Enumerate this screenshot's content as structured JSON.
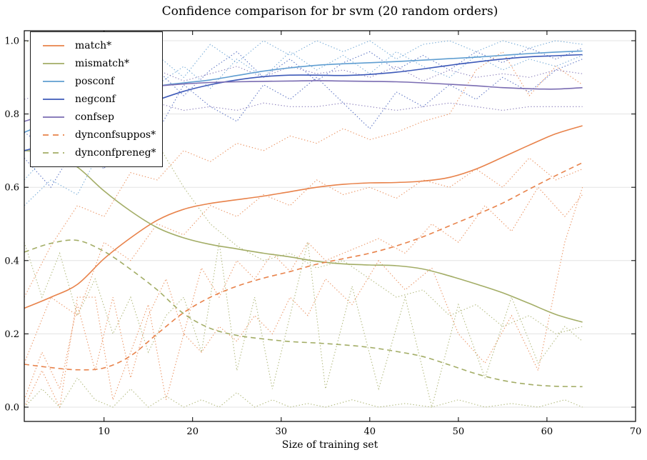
{
  "title": "Confidence comparison for br svm (20 random orders)",
  "chart_data": {
    "type": "line",
    "title": "Confidence comparison for br svm (20 random orders)",
    "xlabel": "Size of training set",
    "ylabel": "",
    "xlim": [
      1,
      70
    ],
    "ylim": [
      -0.04,
      1.03
    ],
    "xticks": [
      10,
      20,
      30,
      40,
      50,
      60,
      70
    ],
    "yticks": [
      0.0,
      0.2,
      0.4,
      0.6,
      0.8,
      1.0
    ],
    "grid": "horizontal",
    "legend_position": "upper-left",
    "colors": {
      "orange": "#e8824a",
      "olive": "#a3ad66",
      "lightblue": "#5f9ed1",
      "darkblue": "#3d59b8",
      "purple": "#7a6cb2",
      "grid": "#e3e3e3",
      "axis": "#000000"
    },
    "x": [
      1,
      4,
      7,
      10,
      13,
      16,
      19,
      22,
      25,
      28,
      31,
      34,
      37,
      40,
      43,
      46,
      49,
      52,
      55,
      58,
      61,
      64
    ],
    "series": [
      {
        "name": "match*",
        "color": "orange",
        "dash": "solid",
        "values": [
          0.27,
          0.3,
          0.335,
          0.405,
          0.462,
          0.51,
          0.54,
          0.556,
          0.566,
          0.576,
          0.588,
          0.6,
          0.608,
          0.612,
          0.613,
          0.617,
          0.627,
          0.65,
          0.682,
          0.715,
          0.746,
          0.768
        ]
      },
      {
        "name": "mismatch*",
        "color": "olive",
        "dash": "solid",
        "values": [
          0.7,
          0.693,
          0.655,
          0.59,
          0.535,
          0.49,
          0.462,
          0.444,
          0.432,
          0.42,
          0.41,
          0.398,
          0.391,
          0.388,
          0.386,
          0.377,
          0.358,
          0.336,
          0.312,
          0.283,
          0.253,
          0.232
        ]
      },
      {
        "name": "posconf",
        "color": "lightblue",
        "dash": "solid",
        "values": [
          0.75,
          0.78,
          0.812,
          0.842,
          0.862,
          0.876,
          0.885,
          0.893,
          0.905,
          0.917,
          0.926,
          0.933,
          0.937,
          0.94,
          0.943,
          0.947,
          0.951,
          0.955,
          0.96,
          0.965,
          0.969,
          0.972
        ]
      },
      {
        "name": "negconf",
        "color": "darkblue",
        "dash": "solid",
        "values": [
          0.7,
          0.72,
          0.748,
          0.778,
          0.812,
          0.838,
          0.862,
          0.88,
          0.893,
          0.902,
          0.906,
          0.906,
          0.905,
          0.908,
          0.914,
          0.923,
          0.933,
          0.942,
          0.95,
          0.956,
          0.959,
          0.962
        ]
      },
      {
        "name": "confsep",
        "color": "purple",
        "dash": "solid",
        "values": [
          0.78,
          0.802,
          0.824,
          0.847,
          0.864,
          0.876,
          0.882,
          0.886,
          0.888,
          0.889,
          0.89,
          0.891,
          0.89,
          0.889,
          0.888,
          0.885,
          0.881,
          0.877,
          0.872,
          0.869,
          0.868,
          0.872
        ]
      },
      {
        "name": "dynconfsuppos*",
        "color": "orange",
        "dash": "dashed",
        "values": [
          0.117,
          0.108,
          0.102,
          0.107,
          0.14,
          0.2,
          0.258,
          0.3,
          0.33,
          0.352,
          0.37,
          0.39,
          0.405,
          0.42,
          0.44,
          0.465,
          0.495,
          0.525,
          0.557,
          0.595,
          0.632,
          0.667
        ]
      },
      {
        "name": "dynconfpreneg*",
        "color": "olive",
        "dash": "dashed",
        "values": [
          0.423,
          0.447,
          0.455,
          0.425,
          0.376,
          0.32,
          0.255,
          0.215,
          0.196,
          0.186,
          0.179,
          0.175,
          0.17,
          0.163,
          0.152,
          0.138,
          0.115,
          0.091,
          0.073,
          0.062,
          0.057,
          0.056
        ]
      }
    ],
    "runs_note": "faint dotted traces = individual random-order runs (approximate)",
    "runs_x_spiky": [
      1,
      3,
      5,
      7,
      9,
      11,
      13,
      15,
      17,
      19,
      21,
      23,
      25,
      27,
      29,
      31,
      33,
      35,
      38,
      41,
      44,
      47,
      50,
      53,
      56,
      59,
      62,
      64
    ],
    "runs": [
      {
        "color": "lightblue",
        "x": "main",
        "values": [
          0.62,
          0.7,
          0.66,
          0.78,
          0.86,
          0.96,
          0.9,
          0.99,
          0.94,
          1.0,
          0.96,
          1.0,
          0.97,
          1.0,
          0.95,
          0.99,
          1.0,
          0.97,
          1.0,
          0.98,
          1.0,
          0.99
        ]
      },
      {
        "color": "lightblue",
        "x": "main",
        "values": [
          0.55,
          0.62,
          0.58,
          0.72,
          0.68,
          0.88,
          0.93,
          0.87,
          0.95,
          0.9,
          0.97,
          0.92,
          0.96,
          0.91,
          0.97,
          0.93,
          0.9,
          0.96,
          0.92,
          0.95,
          0.93,
          0.96
        ]
      },
      {
        "color": "darkblue",
        "x": "main",
        "values": [
          0.68,
          0.6,
          0.72,
          0.65,
          0.8,
          0.75,
          0.88,
          0.82,
          0.78,
          0.88,
          0.84,
          0.9,
          0.83,
          0.76,
          0.86,
          0.82,
          0.88,
          0.84,
          0.9,
          0.86,
          0.92,
          0.95
        ]
      },
      {
        "color": "darkblue",
        "x": "main",
        "values": [
          0.75,
          0.7,
          0.78,
          0.72,
          0.85,
          0.92,
          0.85,
          0.92,
          0.97,
          0.9,
          0.95,
          0.89,
          0.94,
          0.97,
          0.92,
          0.96,
          0.92,
          0.97,
          0.94,
          0.98,
          0.95,
          0.98
        ]
      },
      {
        "color": "purple",
        "x": "main",
        "values": [
          0.78,
          0.8,
          0.79,
          0.81,
          0.8,
          0.83,
          0.81,
          0.82,
          0.81,
          0.83,
          0.82,
          0.82,
          0.83,
          0.82,
          0.81,
          0.82,
          0.83,
          0.82,
          0.81,
          0.82,
          0.82,
          0.82
        ]
      },
      {
        "color": "purple",
        "x": "main",
        "values": [
          0.84,
          0.86,
          0.85,
          0.88,
          0.87,
          0.92,
          0.89,
          0.91,
          0.93,
          0.9,
          0.93,
          0.91,
          0.92,
          0.9,
          0.93,
          0.89,
          0.92,
          0.9,
          0.91,
          0.9,
          0.92,
          0.91
        ]
      },
      {
        "color": "orange",
        "x": "main",
        "values": [
          0.3,
          0.44,
          0.55,
          0.52,
          0.64,
          0.62,
          0.7,
          0.67,
          0.72,
          0.7,
          0.74,
          0.72,
          0.76,
          0.73,
          0.75,
          0.78,
          0.8,
          0.92,
          0.97,
          0.85,
          0.93,
          0.88
        ]
      },
      {
        "color": "orange",
        "x": "main",
        "values": [
          0.12,
          0.3,
          0.25,
          0.45,
          0.4,
          0.5,
          0.47,
          0.55,
          0.52,
          0.58,
          0.55,
          0.62,
          0.58,
          0.6,
          0.57,
          0.62,
          0.6,
          0.65,
          0.6,
          0.68,
          0.62,
          0.65
        ]
      },
      {
        "color": "orange",
        "x": "spiky",
        "values": [
          0.02,
          0.15,
          0.05,
          0.28,
          0.1,
          0.3,
          0.08,
          0.25,
          0.35,
          0.2,
          0.38,
          0.3,
          0.4,
          0.35,
          0.42,
          0.37,
          0.45,
          0.4,
          0.43,
          0.46,
          0.42,
          0.5,
          0.45,
          0.55,
          0.48,
          0.6,
          0.52,
          0.58
        ]
      },
      {
        "color": "orange",
        "x": "spiky",
        "values": [
          0.0,
          0.1,
          0.0,
          0.3,
          0.3,
          0.02,
          0.15,
          0.28,
          0.02,
          0.2,
          0.15,
          0.22,
          0.18,
          0.25,
          0.2,
          0.3,
          0.25,
          0.35,
          0.28,
          0.4,
          0.32,
          0.38,
          0.2,
          0.12,
          0.25,
          0.1,
          0.45,
          0.6
        ]
      },
      {
        "color": "olive",
        "x": "main",
        "values": [
          1.0,
          0.98,
          1.0,
          0.95,
          0.85,
          0.72,
          0.6,
          0.5,
          0.44,
          0.4,
          0.42,
          0.38,
          0.4,
          0.35,
          0.3,
          0.32,
          0.25,
          0.28,
          0.22,
          0.25,
          0.2,
          0.22
        ]
      },
      {
        "color": "olive",
        "x": "spiky",
        "values": [
          0.45,
          0.3,
          0.42,
          0.25,
          0.35,
          0.2,
          0.3,
          0.15,
          0.25,
          0.3,
          0.15,
          0.45,
          0.1,
          0.3,
          0.05,
          0.25,
          0.45,
          0.05,
          0.33,
          0.05,
          0.3,
          0.0,
          0.28,
          0.08,
          0.3,
          0.12,
          0.22,
          0.18
        ]
      },
      {
        "color": "olive",
        "x": "spiky",
        "values": [
          0.0,
          0.05,
          0.0,
          0.08,
          0.02,
          0.0,
          0.05,
          0.0,
          0.03,
          0.0,
          0.02,
          0.0,
          0.04,
          0.0,
          0.02,
          0.0,
          0.01,
          0.0,
          0.02,
          0.0,
          0.01,
          0.0,
          0.02,
          0.0,
          0.01,
          0.0,
          0.02,
          0.0
        ]
      }
    ],
    "legend": [
      {
        "label": "match*",
        "color": "orange",
        "dash": "solid"
      },
      {
        "label": "mismatch*",
        "color": "olive",
        "dash": "solid"
      },
      {
        "label": "posconf",
        "color": "lightblue",
        "dash": "solid"
      },
      {
        "label": "negconf",
        "color": "darkblue",
        "dash": "solid"
      },
      {
        "label": "confsep",
        "color": "purple",
        "dash": "solid"
      },
      {
        "label": "dynconfsuppos*",
        "color": "orange",
        "dash": "dashed"
      },
      {
        "label": "dynconfpreneg*",
        "color": "olive",
        "dash": "dashed"
      }
    ]
  }
}
